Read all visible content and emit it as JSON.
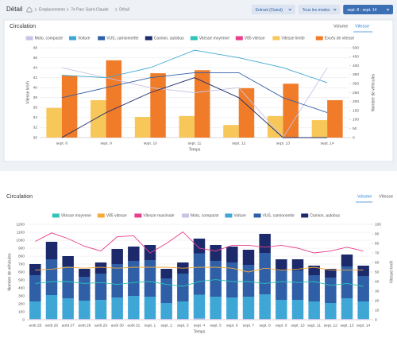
{
  "header": {
    "title": "Détail",
    "breadcrumb": [
      "Emplacements",
      "7e Parc Saint-Claude",
      "Détail"
    ],
    "filters": [
      "Entrant (Ouest)",
      "Tous les modes",
      "sept. 8 - sept. 14"
    ]
  },
  "chart_data": [
    {
      "type": "combo",
      "title": "Circulation",
      "tabs": [
        "Volume",
        "Vitesse"
      ],
      "active_tab": 1,
      "categories": [
        "sept. 8",
        "sept. 9",
        "sept. 10",
        "sept. 11",
        "sept. 12",
        "sept. 13",
        "sept. 14"
      ],
      "x_label": "Temps",
      "y_label": "Vitesse km/h",
      "y2_label": "Nombre de véhicules",
      "ylim": [
        30,
        48
      ],
      "yticks": [
        30,
        32,
        34,
        36,
        38,
        40,
        42,
        44,
        46,
        48
      ],
      "y2lim": [
        0,
        500
      ],
      "y2ticks": [
        0,
        50,
        100,
        150,
        200,
        250,
        300,
        350,
        400,
        450,
        500
      ],
      "grid": true,
      "stacked": false,
      "series": [
        {
          "name": "Moto, compacte",
          "color": "#c9c3e6",
          "kind": "line",
          "values": [
            44,
            42,
            40,
            39,
            40,
            30,
            44
          ]
        },
        {
          "name": "Voiture",
          "color": "#3fa7d6",
          "kind": "line",
          "values": [
            42.5,
            42,
            44,
            47.5,
            46,
            44,
            41
          ]
        },
        {
          "name": "VUS, camionnette",
          "color": "#2f5fa7",
          "kind": "line",
          "values": [
            38,
            40,
            42,
            43,
            43,
            38,
            35
          ]
        },
        {
          "name": "Camion, autobus",
          "color": "#1c2a6b",
          "kind": "line",
          "values": [
            30,
            35,
            39,
            42,
            38,
            30,
            30
          ]
        },
        {
          "name": "Vitesse moyenne",
          "color": "#2ec4b6",
          "kind": "line"
        },
        {
          "name": "V85 vitesse",
          "color": "#e83e8c",
          "kind": "line"
        },
        {
          "name": "Vitesse limite",
          "color": "#f7c75a",
          "kind": "bar",
          "axis": "y2",
          "values": [
            165,
            208,
            115,
            120,
            70,
            120,
            97
          ]
        },
        {
          "name": "Excès de vitesse",
          "color": "#f07c2a",
          "kind": "bar",
          "axis": "y2",
          "values": [
            345,
            430,
            358,
            375,
            275,
            300,
            208
          ]
        }
      ]
    },
    {
      "type": "combo",
      "title": "Circulation",
      "tabs": [
        "Volume",
        "Vitesse"
      ],
      "active_tab": 0,
      "categories": [
        "août 25",
        "août 26",
        "août 27",
        "août 28",
        "août 29",
        "août 30",
        "août 31",
        "sept. 1",
        "sept. 2",
        "sept. 3",
        "sept. 4",
        "sept. 5",
        "sept. 6",
        "sept. 7",
        "sept. 8",
        "sept. 9",
        "sept. 10",
        "sept. 11",
        "sept. 12",
        "sept. 13",
        "sept. 14"
      ],
      "x_label": "Temps",
      "y_label": "Nombre de véhicules",
      "y2_label": "Vitesse km/h",
      "ylim": [
        0,
        1200
      ],
      "yticks": [
        0,
        100,
        200,
        300,
        400,
        500,
        600,
        700,
        800,
        900,
        1000,
        1100,
        1200
      ],
      "y2lim": [
        0,
        100
      ],
      "y2ticks": [
        0,
        10,
        20,
        30,
        40,
        50,
        60,
        70,
        80,
        90,
        100
      ],
      "grid": true,
      "stacked": true,
      "series": [
        {
          "name": "Vitesse moyenne",
          "color": "#2ec4b6",
          "kind": "line",
          "axis": "y2",
          "values": [
            38,
            40,
            40,
            38,
            39,
            37,
            39,
            40,
            37,
            35,
            40,
            42,
            40,
            40,
            38,
            40,
            39,
            40,
            36,
            38,
            35
          ]
        },
        {
          "name": "V85 vitesse",
          "color": "#f4a93b",
          "kind": "line",
          "axis": "y2",
          "values": [
            52,
            53,
            55,
            54,
            55,
            54,
            55,
            55,
            55,
            54,
            55,
            55,
            54,
            50,
            54,
            52,
            53,
            55,
            52,
            52,
            52
          ]
        },
        {
          "name": "Vitesse maximale",
          "color": "#e83e8c",
          "kind": "line",
          "axis": "y2",
          "values": [
            82,
            91,
            85,
            77,
            72,
            87,
            88,
            70,
            80,
            92,
            75,
            72,
            78,
            78,
            76,
            78,
            75,
            70,
            72,
            76,
            72
          ]
        },
        {
          "name": "Moto, compacte",
          "color": "#c9c3e6",
          "kind": "bar",
          "values": [
            10,
            10,
            10,
            10,
            10,
            10,
            10,
            10,
            10,
            10,
            15,
            10,
            10,
            10,
            10,
            10,
            10,
            10,
            10,
            10,
            10
          ]
        },
        {
          "name": "Voiture",
          "color": "#3fa7d6",
          "kind": "bar",
          "values": [
            220,
            300,
            260,
            230,
            240,
            270,
            290,
            280,
            200,
            220,
            300,
            280,
            270,
            280,
            310,
            240,
            240,
            220,
            200,
            260,
            220
          ]
        },
        {
          "name": "VUS, camionnette",
          "color": "#2f5fa7",
          "kind": "bar",
          "values": [
            330,
            450,
            400,
            300,
            330,
            420,
            440,
            460,
            310,
            350,
            520,
            450,
            440,
            400,
            520,
            370,
            370,
            330,
            320,
            400,
            320
          ]
        },
        {
          "name": "Camion, autobus",
          "color": "#1c2a6b",
          "kind": "bar",
          "values": [
            140,
            220,
            130,
            100,
            140,
            190,
            180,
            190,
            120,
            140,
            185,
            200,
            200,
            190,
            240,
            140,
            140,
            120,
            110,
            150,
            130
          ]
        }
      ]
    }
  ]
}
